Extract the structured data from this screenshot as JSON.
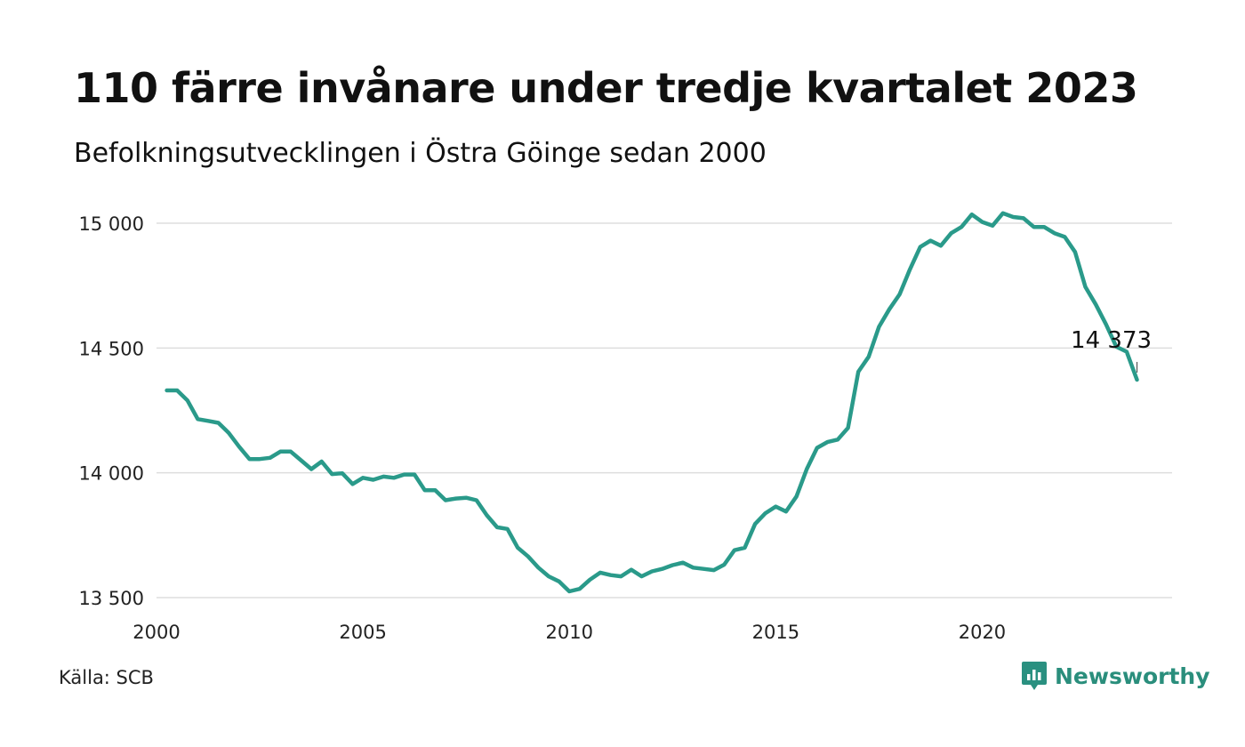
{
  "title": "110 färre invånare under tredje kvartalet 2023",
  "subtitle": "Befolkningsutvecklingen i Östra Göinge sedan 2000",
  "source": "Källa: SCB",
  "brand": {
    "name": "Newsworthy",
    "icon": "newsworthy-logo-icon",
    "color": "#2a9080"
  },
  "chart_data": {
    "type": "line",
    "title": "110 färre invånare under tredje kvartalet 2023",
    "subtitle": "Befolkningsutvecklingen i Östra Göinge sedan 2000",
    "xlabel": "",
    "ylabel": "",
    "xlim": [
      2000,
      2024.6
    ],
    "ylim": [
      13500,
      15000
    ],
    "grid": true,
    "line_color": "#2a9a8a",
    "x_ticks": [
      {
        "value": 2000,
        "label": "2000"
      },
      {
        "value": 2005,
        "label": "2005"
      },
      {
        "value": 2010,
        "label": "2010"
      },
      {
        "value": 2015,
        "label": "2015"
      },
      {
        "value": 2020,
        "label": "2020"
      }
    ],
    "y_ticks": [
      {
        "value": 13500,
        "label": "13 500"
      },
      {
        "value": 14000,
        "label": "14 000"
      },
      {
        "value": 14500,
        "label": "14 500"
      },
      {
        "value": 15000,
        "label": "15 000"
      }
    ],
    "annotation": {
      "x": 2023.75,
      "y": 14373,
      "label": "14 373"
    },
    "x": [
      2000.25,
      2000.5,
      2000.75,
      2001,
      2001.25,
      2001.5,
      2001.75,
      2002,
      2002.25,
      2002.5,
      2002.75,
      2003,
      2003.25,
      2003.5,
      2003.75,
      2004,
      2004.25,
      2004.5,
      2004.75,
      2005,
      2005.25,
      2005.5,
      2005.75,
      2006,
      2006.25,
      2006.5,
      2006.75,
      2007,
      2007.25,
      2007.5,
      2007.75,
      2008,
      2008.25,
      2008.5,
      2008.75,
      2009,
      2009.25,
      2009.5,
      2009.75,
      2010,
      2010.25,
      2010.5,
      2010.75,
      2011,
      2011.25,
      2011.5,
      2011.75,
      2012,
      2012.25,
      2012.5,
      2012.75,
      2013,
      2013.25,
      2013.5,
      2013.75,
      2014,
      2014.25,
      2014.5,
      2014.75,
      2015,
      2015.25,
      2015.5,
      2015.75,
      2016,
      2016.25,
      2016.5,
      2016.75,
      2017,
      2017.25,
      2017.5,
      2017.75,
      2018,
      2018.25,
      2018.5,
      2018.75,
      2019,
      2019.25,
      2019.5,
      2019.75,
      2020,
      2020.25,
      2020.5,
      2020.75,
      2021,
      2021.25,
      2021.5,
      2021.75,
      2022,
      2022.25,
      2022.5,
      2022.75,
      2023,
      2023.25,
      2023.5,
      2023.75
    ],
    "values": [
      14330,
      14330,
      14290,
      14215,
      14208,
      14200,
      14160,
      14105,
      14055,
      14055,
      14060,
      14085,
      14085,
      14050,
      14015,
      14045,
      13995,
      13998,
      13955,
      13980,
      13972,
      13985,
      13980,
      13993,
      13993,
      13930,
      13930,
      13890,
      13897,
      13900,
      13890,
      13830,
      13782,
      13775,
      13700,
      13665,
      13620,
      13585,
      13565,
      13525,
      13535,
      13572,
      13600,
      13590,
      13585,
      13612,
      13585,
      13605,
      13615,
      13630,
      13640,
      13620,
      13615,
      13610,
      13632,
      13690,
      13700,
      13795,
      13838,
      13865,
      13845,
      13905,
      14015,
      14100,
      14123,
      14133,
      14180,
      14405,
      14465,
      14585,
      14655,
      14715,
      14815,
      14905,
      14930,
      14910,
      14960,
      14985,
      15035,
      15005,
      14990,
      15040,
      15025,
      15020,
      14985,
      14985,
      14960,
      14945,
      14885,
      14745,
      14675,
      14595,
      14505,
      14485,
      14373
    ]
  }
}
